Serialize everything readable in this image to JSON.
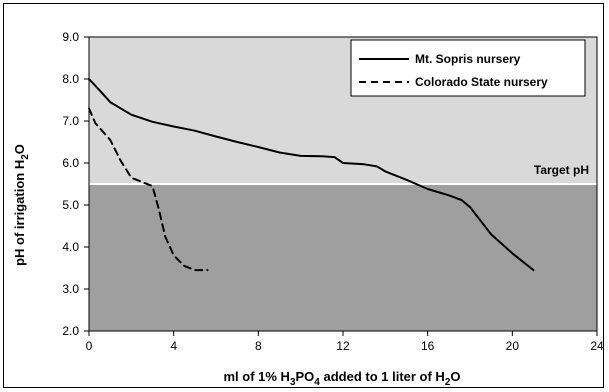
{
  "chart_data": {
    "type": "line",
    "xlabel": "ml of 1% H3PO4 added to 1 liter of H2O",
    "ylabel": "pH of irrigation H2O",
    "xlim": [
      0,
      24
    ],
    "ylim": [
      2.0,
      9.0
    ],
    "x_ticks": [
      "0",
      "4",
      "8",
      "12",
      "16",
      "20",
      "24"
    ],
    "y_ticks": [
      "2.0",
      "3.0",
      "4.0",
      "5.0",
      "6.0",
      "7.0",
      "8.0",
      "9.0"
    ],
    "target_ph": 5.5,
    "target_label": "Target pH",
    "legend_position": "top-right",
    "colors": {
      "upper_region": "#d9d9d9",
      "lower_region": "#9f9f9f",
      "line": "#000000"
    },
    "series": [
      {
        "name": "Mt. Sopris nursery",
        "style": "solid",
        "x": [
          0,
          0.5,
          1,
          2,
          3,
          4,
          5,
          6,
          7,
          8,
          9,
          10,
          11,
          11.6,
          12,
          13,
          13.6,
          14,
          15,
          16,
          17,
          17.6,
          18,
          19,
          20,
          21
        ],
        "y": [
          8.0,
          7.73,
          7.45,
          7.15,
          6.98,
          6.87,
          6.77,
          6.63,
          6.5,
          6.38,
          6.25,
          6.17,
          6.16,
          6.14,
          6.0,
          5.97,
          5.92,
          5.8,
          5.6,
          5.38,
          5.23,
          5.12,
          4.95,
          4.3,
          3.85,
          3.45
        ]
      },
      {
        "name": "Colorado State nursery",
        "style": "dashed",
        "x": [
          0,
          0.3,
          1,
          1.5,
          2,
          2.5,
          3,
          3.3,
          3.6,
          4,
          4.5,
          5,
          5.6
        ],
        "y": [
          7.3,
          6.95,
          6.55,
          6.05,
          5.65,
          5.55,
          5.45,
          4.9,
          4.25,
          3.8,
          3.55,
          3.45,
          3.45
        ]
      }
    ]
  }
}
